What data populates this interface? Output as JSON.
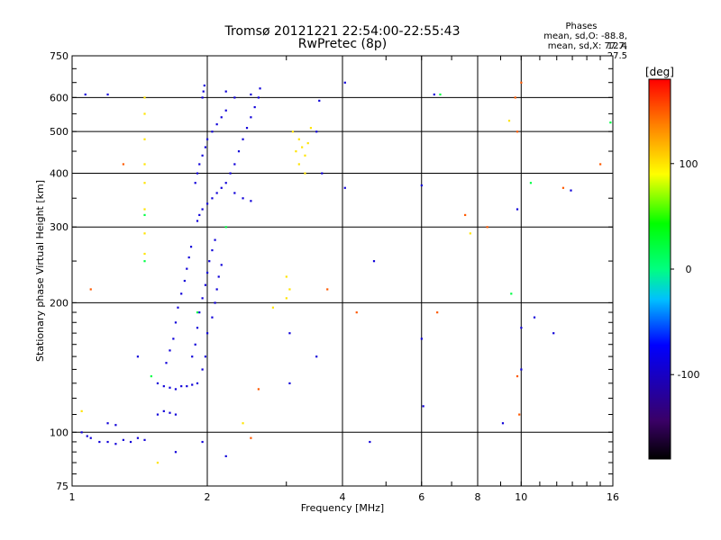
{
  "header": {
    "title": "Tromsø 20121221 22:54:00-22:55:43",
    "subtitle": "RwPretec (8p)",
    "stats_heading": "Phases",
    "stats_o": "mean, sd,O: -88.8, 12.4",
    "stats_x": "mean, sd,X:  77.7, 27.5"
  },
  "chart_data": {
    "type": "scatter",
    "title": "Tromsø 20121221 22:54:00-22:55:43",
    "subtitle": "RwPretec (8p)",
    "xlabel": "Frequency [MHz]",
    "ylabel": "Stationary phase Virtual Height [km]",
    "x_scale": "log",
    "y_scale": "log",
    "xlim": [
      1,
      16
    ],
    "ylim": [
      75,
      750
    ],
    "x_ticks": [
      1,
      2,
      4,
      6,
      8,
      10,
      16
    ],
    "y_ticks": [
      75,
      100,
      200,
      300,
      400,
      500,
      600,
      750
    ],
    "grid": true,
    "colorbar": {
      "label": "[deg]",
      "ticks": [
        100,
        0,
        -100
      ],
      "range": [
        -180,
        180
      ]
    },
    "series": [
      {
        "phase": -90,
        "points": [
          [
            1.05,
            100
          ],
          [
            1.08,
            98
          ],
          [
            1.1,
            97
          ],
          [
            1.15,
            95
          ],
          [
            1.2,
            95
          ],
          [
            1.25,
            94
          ],
          [
            1.3,
            96
          ],
          [
            1.35,
            95
          ],
          [
            1.4,
            97
          ],
          [
            1.45,
            96
          ],
          [
            1.2,
            105
          ],
          [
            1.25,
            104
          ],
          [
            1.55,
            110
          ],
          [
            1.6,
            112
          ],
          [
            1.65,
            111
          ],
          [
            1.7,
            110
          ],
          [
            1.55,
            130
          ],
          [
            1.6,
            128
          ],
          [
            1.65,
            127
          ],
          [
            1.7,
            126
          ],
          [
            1.75,
            128
          ],
          [
            1.8,
            128
          ],
          [
            1.85,
            129
          ],
          [
            1.9,
            130
          ],
          [
            1.62,
            145
          ],
          [
            1.65,
            155
          ],
          [
            1.68,
            165
          ],
          [
            1.7,
            180
          ],
          [
            1.72,
            195
          ],
          [
            1.75,
            210
          ],
          [
            1.78,
            225
          ],
          [
            1.8,
            240
          ],
          [
            1.82,
            255
          ],
          [
            1.84,
            270
          ],
          [
            1.85,
            150
          ],
          [
            1.88,
            160
          ],
          [
            1.9,
            175
          ],
          [
            1.92,
            190
          ],
          [
            1.95,
            205
          ],
          [
            1.98,
            220
          ],
          [
            2.0,
            235
          ],
          [
            2.02,
            250
          ],
          [
            2.05,
            265
          ],
          [
            2.08,
            280
          ],
          [
            1.95,
            140
          ],
          [
            1.98,
            150
          ],
          [
            2.0,
            170
          ],
          [
            2.05,
            185
          ],
          [
            2.08,
            200
          ],
          [
            2.1,
            215
          ],
          [
            2.12,
            230
          ],
          [
            2.15,
            245
          ],
          [
            1.9,
            310
          ],
          [
            1.92,
            320
          ],
          [
            1.95,
            330
          ],
          [
            2.0,
            340
          ],
          [
            2.05,
            350
          ],
          [
            2.1,
            360
          ],
          [
            2.15,
            370
          ],
          [
            2.2,
            380
          ],
          [
            2.3,
            360
          ],
          [
            2.4,
            350
          ],
          [
            2.5,
            345
          ],
          [
            1.88,
            380
          ],
          [
            1.9,
            400
          ],
          [
            1.92,
            420
          ],
          [
            1.95,
            440
          ],
          [
            1.98,
            460
          ],
          [
            2.0,
            480
          ],
          [
            2.05,
            500
          ],
          [
            2.1,
            520
          ],
          [
            2.15,
            540
          ],
          [
            2.2,
            560
          ],
          [
            2.25,
            400
          ],
          [
            2.3,
            420
          ],
          [
            2.35,
            450
          ],
          [
            2.4,
            480
          ],
          [
            2.45,
            510
          ],
          [
            2.5,
            540
          ],
          [
            2.55,
            570
          ],
          [
            2.6,
            600
          ],
          [
            2.62,
            630
          ],
          [
            1.95,
            600
          ],
          [
            1.96,
            620
          ],
          [
            1.97,
            640
          ],
          [
            2.2,
            620
          ],
          [
            2.3,
            600
          ],
          [
            2.5,
            610
          ],
          [
            1.07,
            610
          ],
          [
            1.2,
            610
          ],
          [
            1.4,
            150
          ],
          [
            1.7,
            90
          ],
          [
            1.95,
            95
          ],
          [
            2.2,
            88
          ],
          [
            3.05,
            170
          ],
          [
            3.05,
            130
          ],
          [
            3.5,
            150
          ],
          [
            3.6,
            400
          ],
          [
            3.5,
            500
          ],
          [
            3.55,
            590
          ],
          [
            4.05,
            370
          ],
          [
            4.05,
            650
          ],
          [
            4.6,
            95
          ],
          [
            4.7,
            250
          ],
          [
            6.0,
            375
          ],
          [
            6.0,
            165
          ],
          [
            6.05,
            115
          ],
          [
            6.4,
            610
          ],
          [
            9.1,
            105
          ],
          [
            9.8,
            330
          ],
          [
            10.0,
            175
          ],
          [
            10.0,
            140
          ],
          [
            10.7,
            185
          ],
          [
            11.8,
            170
          ],
          [
            12.9,
            365
          ]
        ]
      },
      {
        "phase": 100,
        "points": [
          [
            1.45,
            600
          ],
          [
            1.45,
            550
          ],
          [
            1.45,
            480
          ],
          [
            1.45,
            420
          ],
          [
            1.45,
            380
          ],
          [
            1.45,
            330
          ],
          [
            1.45,
            290
          ],
          [
            1.45,
            260
          ],
          [
            3.1,
            500
          ],
          [
            3.2,
            480
          ],
          [
            3.25,
            460
          ],
          [
            3.3,
            440
          ],
          [
            3.2,
            420
          ],
          [
            3.3,
            400
          ],
          [
            3.4,
            510
          ],
          [
            3.35,
            470
          ],
          [
            3.15,
            450
          ],
          [
            3.0,
            230
          ],
          [
            3.05,
            215
          ],
          [
            3.0,
            205
          ],
          [
            2.8,
            195
          ],
          [
            1.05,
            112
          ],
          [
            1.55,
            85
          ],
          [
            2.4,
            105
          ],
          [
            7.7,
            290
          ],
          [
            9.4,
            530
          ]
        ]
      },
      {
        "phase": 150,
        "points": [
          [
            1.1,
            215
          ],
          [
            1.3,
            420
          ],
          [
            2.6,
            126
          ],
          [
            2.5,
            97
          ],
          [
            3.7,
            215
          ],
          [
            4.3,
            190
          ],
          [
            6.5,
            190
          ],
          [
            7.5,
            320
          ],
          [
            8.4,
            300
          ],
          [
            9.8,
            500
          ],
          [
            9.7,
            600
          ],
          [
            9.9,
            110
          ],
          [
            9.8,
            135
          ],
          [
            10.0,
            650
          ],
          [
            12.4,
            370
          ],
          [
            15.0,
            420
          ]
        ]
      },
      {
        "phase": 20,
        "points": [
          [
            1.45,
            250
          ],
          [
            1.5,
            135
          ],
          [
            1.45,
            320
          ],
          [
            1.9,
            190
          ],
          [
            2.2,
            300
          ],
          [
            6.6,
            610
          ],
          [
            10.5,
            380
          ],
          [
            15.8,
            525
          ],
          [
            9.5,
            210
          ]
        ]
      }
    ]
  }
}
